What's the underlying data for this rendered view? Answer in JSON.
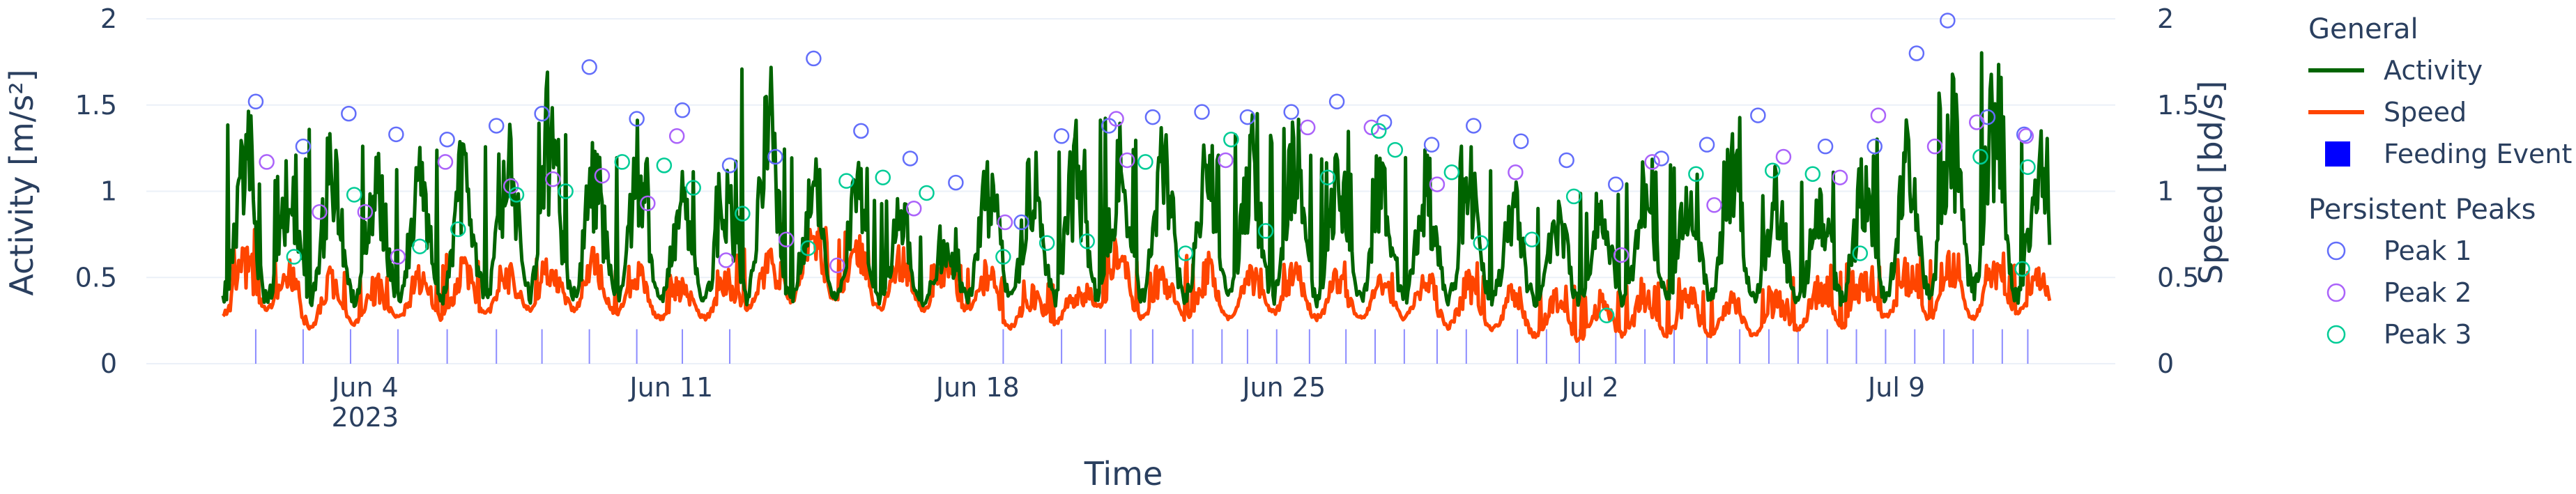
{
  "chart_data": {
    "type": "line",
    "xlabel": "Time",
    "ylabel": "Activity [m/s²]",
    "ylabel_right": "Speed [bd/s]",
    "ylim": [
      0,
      2
    ],
    "ylim_right": [
      0,
      2
    ],
    "yticks": [
      "0",
      "0.5",
      "1",
      "1.5",
      "2"
    ],
    "yticks_right": [
      "0",
      "0.5",
      "1",
      "1.5",
      "2"
    ],
    "xrange": [
      "2023-05-30",
      "2023-07-14"
    ],
    "xticks": [
      {
        "date": "2023-06-04",
        "label": "Jun 4",
        "sublabel": "2023"
      },
      {
        "date": "2023-06-11",
        "label": "Jun 11",
        "sublabel": ""
      },
      {
        "date": "2023-06-18",
        "label": "Jun 18",
        "sublabel": ""
      },
      {
        "date": "2023-06-25",
        "label": "Jun 25",
        "sublabel": ""
      },
      {
        "date": "2023-07-02",
        "label": "Jul 2",
        "sublabel": ""
      },
      {
        "date": "2023-07-09",
        "label": "Jul 9",
        "sublabel": ""
      }
    ],
    "grid": true,
    "legend_position": "right",
    "legend": {
      "groups": [
        {
          "title": "General",
          "items": [
            {
              "name": "Activity",
              "symbol": "line",
              "color": "#006400"
            },
            {
              "name": "Speed",
              "symbol": "line",
              "color": "#ff4500"
            },
            {
              "name": "Feeding Event",
              "symbol": "square",
              "color": "#0000ff"
            }
          ]
        },
        {
          "title": "Persistent Peaks",
          "items": [
            {
              "name": "Peak 1",
              "symbol": "circle",
              "color": "#636efa"
            },
            {
              "name": "Peak 2",
              "symbol": "circle",
              "color": "#ab63fa"
            },
            {
              "name": "Peak 3",
              "symbol": "circle",
              "color": "#00cc96"
            }
          ]
        }
      ]
    },
    "series": [
      {
        "name": "Activity",
        "axis": "left",
        "color": "#006400",
        "x": [
          "2023-06-01",
          "2023-06-02",
          "2023-06-03",
          "2023-06-04",
          "2023-06-05",
          "2023-06-06",
          "2023-06-07",
          "2023-06-08",
          "2023-06-09",
          "2023-06-10",
          "2023-06-11",
          "2023-06-12",
          "2023-06-13",
          "2023-06-14",
          "2023-06-15",
          "2023-06-16",
          "2023-06-17",
          "2023-06-18",
          "2023-06-19",
          "2023-06-20",
          "2023-06-21",
          "2023-06-22",
          "2023-06-23",
          "2023-06-24",
          "2023-06-25",
          "2023-06-26",
          "2023-06-27",
          "2023-06-28",
          "2023-06-29",
          "2023-06-30",
          "2023-07-01",
          "2023-07-02",
          "2023-07-03",
          "2023-07-04",
          "2023-07-05",
          "2023-07-06",
          "2023-07-07",
          "2023-07-08",
          "2023-07-09",
          "2023-07-10",
          "2023-07-11",
          "2023-07-12"
        ],
        "daily_peak": [
          1.52,
          1.26,
          1.45,
          1.33,
          1.3,
          1.38,
          1.45,
          1.72,
          1.42,
          1.47,
          1.15,
          1.2,
          1.77,
          1.35,
          1.19,
          1.05,
          0.82,
          1.32,
          1.38,
          1.43,
          1.46,
          1.43,
          1.46,
          1.5,
          1.52,
          1.4,
          1.27,
          1.3,
          1.29,
          1.18,
          1.05,
          1.04,
          1.19,
          1.27,
          1.44,
          1.18,
          1.1,
          1.26,
          1.44,
          1.8,
          1.99,
          1.43
        ],
        "daily_mean": [
          0.6,
          0.55,
          0.6,
          0.55,
          0.58,
          0.62,
          0.62,
          0.6,
          0.62,
          0.65,
          0.6,
          0.6,
          0.65,
          0.7,
          0.65,
          0.62,
          0.55,
          0.55,
          0.58,
          0.6,
          0.65,
          0.62,
          0.68,
          0.7,
          0.68,
          0.65,
          0.6,
          0.62,
          0.6,
          0.58,
          0.55,
          0.55,
          0.55,
          0.6,
          0.58,
          0.55,
          0.6,
          0.62,
          0.7,
          0.75,
          0.8,
          0.7
        ]
      },
      {
        "name": "Speed",
        "axis": "right",
        "color": "#ff4500",
        "x": [
          "2023-06-01",
          "2023-06-02",
          "2023-06-03",
          "2023-06-04",
          "2023-06-05",
          "2023-06-06",
          "2023-06-07",
          "2023-06-08",
          "2023-06-09",
          "2023-06-10",
          "2023-06-11",
          "2023-06-12",
          "2023-06-13",
          "2023-06-14",
          "2023-06-15",
          "2023-06-16",
          "2023-06-17",
          "2023-06-18",
          "2023-06-19",
          "2023-06-20",
          "2023-06-21",
          "2023-06-22",
          "2023-06-23",
          "2023-06-24",
          "2023-06-25",
          "2023-06-26",
          "2023-06-27",
          "2023-06-28",
          "2023-06-29",
          "2023-06-30",
          "2023-07-01",
          "2023-07-02",
          "2023-07-03",
          "2023-07-04",
          "2023-07-05",
          "2023-07-06",
          "2023-07-07",
          "2023-07-08",
          "2023-07-09",
          "2023-07-10",
          "2023-07-11",
          "2023-07-12"
        ],
        "daily_peak": [
          0.78,
          0.62,
          0.6,
          0.55,
          0.58,
          0.65,
          0.6,
          0.62,
          0.7,
          0.6,
          0.55,
          0.55,
          0.68,
          0.9,
          0.8,
          0.72,
          0.65,
          0.6,
          0.5,
          0.5,
          0.75,
          0.6,
          0.65,
          0.6,
          0.62,
          0.6,
          0.55,
          0.62,
          0.6,
          0.52,
          0.5,
          0.45,
          0.5,
          0.52,
          0.48,
          0.45,
          0.55,
          0.6,
          0.62,
          0.68,
          0.65,
          0.58
        ],
        "daily_low": [
          0.25,
          0.3,
          0.2,
          0.22,
          0.25,
          0.25,
          0.28,
          0.3,
          0.3,
          0.28,
          0.25,
          0.25,
          0.3,
          0.35,
          0.35,
          0.3,
          0.3,
          0.3,
          0.2,
          0.22,
          0.3,
          0.25,
          0.25,
          0.25,
          0.28,
          0.25,
          0.25,
          0.25,
          0.2,
          0.18,
          0.15,
          0.12,
          0.15,
          0.15,
          0.15,
          0.15,
          0.18,
          0.2,
          0.25,
          0.25,
          0.25,
          0.28
        ]
      },
      {
        "name": "Peak 1",
        "type": "scatter",
        "marker": "circle-open",
        "color": "#636efa",
        "points": [
          [
            "2023-06-01T12:00",
            1.52
          ],
          [
            "2023-06-02T14:00",
            1.26
          ],
          [
            "2023-06-03T15:00",
            1.45
          ],
          [
            "2023-06-04T17:00",
            1.33
          ],
          [
            "2023-06-05T21:00",
            1.3
          ],
          [
            "2023-06-07T00:00",
            1.38
          ],
          [
            "2023-06-08T01:00",
            1.45
          ],
          [
            "2023-06-09T03:00",
            1.72
          ],
          [
            "2023-06-10T05:00",
            1.42
          ],
          [
            "2023-06-11T06:00",
            1.47
          ],
          [
            "2023-06-12T08:00",
            1.15
          ],
          [
            "2023-06-13T09:00",
            1.2
          ],
          [
            "2023-06-14T06:00",
            1.77
          ],
          [
            "2023-06-15T08:00",
            1.35
          ],
          [
            "2023-06-16T11:00",
            1.19
          ],
          [
            "2023-06-17T12:00",
            1.05
          ],
          [
            "2023-06-19T00:00",
            0.82
          ],
          [
            "2023-06-19T22:00",
            1.32
          ],
          [
            "2023-06-21T00:00",
            1.38
          ],
          [
            "2023-06-22T00:00",
            1.43
          ],
          [
            "2023-06-23T03:00",
            1.46
          ],
          [
            "2023-06-24T04:00",
            1.43
          ],
          [
            "2023-06-25T04:00",
            1.46
          ],
          [
            "2023-06-26T05:00",
            1.52
          ],
          [
            "2023-06-27T07:00",
            1.4
          ],
          [
            "2023-06-28T09:00",
            1.27
          ],
          [
            "2023-06-29T08:00",
            1.38
          ],
          [
            "2023-06-30T10:00",
            1.29
          ],
          [
            "2023-07-01T11:00",
            1.18
          ],
          [
            "2023-07-02T14:00",
            1.04
          ],
          [
            "2023-07-03T15:00",
            1.19
          ],
          [
            "2023-07-04T16:00",
            1.27
          ],
          [
            "2023-07-05T20:00",
            1.44
          ],
          [
            "2023-07-07T09:00",
            1.26
          ],
          [
            "2023-07-08T12:00",
            1.26
          ],
          [
            "2023-07-09T11:00",
            1.8
          ],
          [
            "2023-07-10T04:00",
            1.99
          ],
          [
            "2023-07-11T02:00",
            1.43
          ],
          [
            "2023-07-11T22:00",
            1.33
          ]
        ]
      },
      {
        "name": "Peak 2",
        "type": "scatter",
        "marker": "circle-open",
        "color": "#ab63fa",
        "points": [
          [
            "2023-06-01T18:00",
            1.17
          ],
          [
            "2023-06-02T23:00",
            0.88
          ],
          [
            "2023-06-04T00:00",
            0.88
          ],
          [
            "2023-06-04T18:00",
            0.62
          ],
          [
            "2023-06-05T20:00",
            1.17
          ],
          [
            "2023-06-07T08:00",
            1.03
          ],
          [
            "2023-06-08T07:00",
            1.07
          ],
          [
            "2023-06-09T10:00",
            1.09
          ],
          [
            "2023-06-10T11:00",
            0.93
          ],
          [
            "2023-06-11T03:00",
            1.32
          ],
          [
            "2023-06-12T06:00",
            0.6
          ],
          [
            "2023-06-13T15:00",
            0.72
          ],
          [
            "2023-06-14T19:00",
            0.57
          ],
          [
            "2023-06-16T13:00",
            0.9
          ],
          [
            "2023-06-18T15:00",
            0.82
          ],
          [
            "2023-06-21T04:00",
            1.42
          ],
          [
            "2023-06-21T10:00",
            1.18
          ],
          [
            "2023-06-23T16:00",
            1.18
          ],
          [
            "2023-06-25T13:00",
            1.37
          ],
          [
            "2023-06-27T00:00",
            1.37
          ],
          [
            "2023-06-28T12:00",
            1.04
          ],
          [
            "2023-06-30T07:00",
            1.11
          ],
          [
            "2023-07-02T17:00",
            0.63
          ],
          [
            "2023-07-03T10:00",
            1.17
          ],
          [
            "2023-07-04T20:00",
            0.92
          ],
          [
            "2023-07-06T10:00",
            1.2
          ],
          [
            "2023-07-07T17:00",
            1.08
          ],
          [
            "2023-07-08T14:00",
            1.44
          ],
          [
            "2023-07-09T21:00",
            1.26
          ],
          [
            "2023-07-10T20:00",
            1.4
          ],
          [
            "2023-07-11T23:00",
            1.32
          ]
        ]
      },
      {
        "name": "Peak 3",
        "type": "scatter",
        "marker": "circle-open",
        "color": "#00cc96",
        "points": [
          [
            "2023-06-02T09:00",
            0.62
          ],
          [
            "2023-06-03T18:00",
            0.98
          ],
          [
            "2023-06-05T06:00",
            0.68
          ],
          [
            "2023-06-06T03:00",
            0.78
          ],
          [
            "2023-06-07T11:00",
            0.98
          ],
          [
            "2023-06-08T14:00",
            1.0
          ],
          [
            "2023-06-09T21:00",
            1.17
          ],
          [
            "2023-06-10T20:00",
            1.15
          ],
          [
            "2023-06-11T12:00",
            1.02
          ],
          [
            "2023-06-12T15:00",
            0.87
          ],
          [
            "2023-06-14T03:00",
            0.67
          ],
          [
            "2023-06-15T00:00",
            1.06
          ],
          [
            "2023-06-15T20:00",
            1.08
          ],
          [
            "2023-06-16T20:00",
            0.99
          ],
          [
            "2023-06-18T14:00",
            0.62
          ],
          [
            "2023-06-19T14:00",
            0.7
          ],
          [
            "2023-06-20T12:00",
            0.71
          ],
          [
            "2023-06-21T20:00",
            1.17
          ],
          [
            "2023-06-22T18:00",
            0.64
          ],
          [
            "2023-06-23T19:00",
            1.3
          ],
          [
            "2023-06-24T14:00",
            0.77
          ],
          [
            "2023-06-26T00:00",
            1.08
          ],
          [
            "2023-06-27T04:00",
            1.35
          ],
          [
            "2023-06-27T13:00",
            1.24
          ],
          [
            "2023-06-28T20:00",
            1.11
          ],
          [
            "2023-06-29T12:00",
            0.7
          ],
          [
            "2023-06-30T16:00",
            0.72
          ],
          [
            "2023-07-01T15:00",
            0.97
          ],
          [
            "2023-07-02T09:00",
            0.28
          ],
          [
            "2023-07-04T10:00",
            1.1
          ],
          [
            "2023-07-06T04:00",
            1.12
          ],
          [
            "2023-07-07T02:00",
            1.1
          ],
          [
            "2023-07-08T04:00",
            0.64
          ],
          [
            "2023-07-10T22:00",
            1.2
          ],
          [
            "2023-07-11T21:00",
            0.55
          ],
          [
            "2023-07-12T00:00",
            1.14
          ]
        ]
      },
      {
        "name": "Feeding Event",
        "type": "event",
        "color": "#0000ff",
        "x": [
          "2023-06-01T12:00",
          "2023-06-02T14:00",
          "2023-06-03T16:00",
          "2023-06-04T18:00",
          "2023-06-05T21:00",
          "2023-06-07T00:00",
          "2023-06-08T01:00",
          "2023-06-09T03:00",
          "2023-06-10T05:00",
          "2023-06-11T06:00",
          "2023-06-12T08:00",
          "2023-06-18T14:00",
          "2023-06-19T22:00",
          "2023-06-20T22:00",
          "2023-06-21T12:00",
          "2023-06-22T00:00",
          "2023-06-22T22:00",
          "2023-06-23T14:00",
          "2023-06-24T04:00",
          "2023-06-24T20:00",
          "2023-06-25T14:00",
          "2023-06-26T10:00",
          "2023-06-27T02:00",
          "2023-06-27T18:00",
          "2023-06-28T12:00",
          "2023-06-29T04:00",
          "2023-06-30T08:00",
          "2023-07-01T00:00",
          "2023-07-01T18:00",
          "2023-07-02T14:00",
          "2023-07-03T06:00",
          "2023-07-03T22:00",
          "2023-07-04T16:00",
          "2023-07-05T10:00",
          "2023-07-06T02:00",
          "2023-07-06T18:00",
          "2023-07-07T10:00",
          "2023-07-08T02:00",
          "2023-07-08T18:00",
          "2023-07-09T10:00",
          "2023-07-10T02:00",
          "2023-07-10T18:00",
          "2023-07-11T10:00",
          "2023-07-12T00:00"
        ]
      }
    ]
  }
}
